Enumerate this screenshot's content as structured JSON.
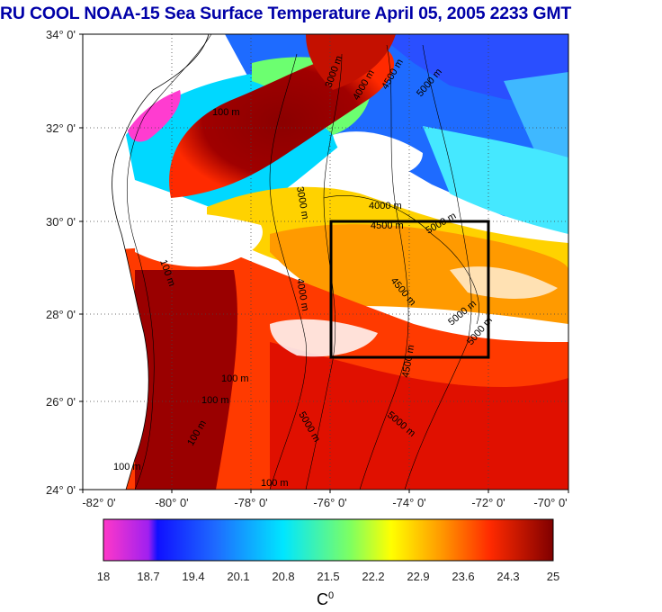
{
  "title": "RU COOL  NOAA-15 Sea Surface Temperature April 05, 2005 2233 GMT",
  "lat_ticks": [
    "34° 0'",
    "32° 0'",
    "30° 0'",
    "28° 0'",
    "26° 0'",
    "24° 0'"
  ],
  "lon_ticks": [
    "-82° 0'",
    "-80° 0'",
    "-78° 0'",
    "-76° 0'",
    "-74° 0'",
    "-72° 0'",
    "-70° 0'"
  ],
  "contour_labels": [
    "100 m",
    "3000 m",
    "4000 m",
    "4500 m",
    "5000 m",
    "4000 m",
    "4500 m",
    "5000 m",
    "3000 m",
    "4500 m",
    "5000 m",
    "5000 m",
    "100 m",
    "100 m",
    "100 m",
    "4500 m",
    "5000 m",
    "100 m",
    "5000 m",
    "100 m",
    "100 m",
    "4000 m"
  ],
  "colorbar": {
    "ticks": [
      "18",
      "18.7",
      "19.4",
      "20.1",
      "20.8",
      "21.5",
      "22.2",
      "22.9",
      "23.6",
      "24.3",
      "25"
    ],
    "unit": "C",
    "unit_sup": "0",
    "min": 18,
    "max": 25
  },
  "colors": {
    "title": "#0000a8",
    "box": "#000000",
    "warm": "#8b0000",
    "cool": "#1e6bff"
  }
}
